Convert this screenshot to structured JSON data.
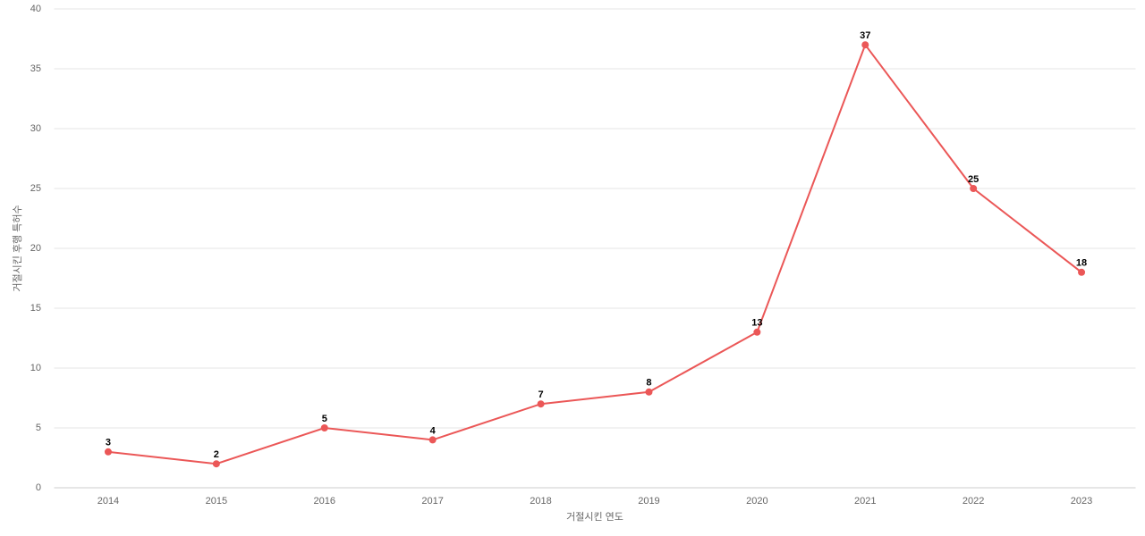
{
  "chart_data": {
    "type": "line",
    "x_label": "거절시킨 연도",
    "y_label": "거절시킨 후행 특허수",
    "categories": [
      "2014",
      "2015",
      "2016",
      "2017",
      "2018",
      "2019",
      "2020",
      "2021",
      "2022",
      "2023"
    ],
    "values": [
      3,
      2,
      5,
      4,
      7,
      8,
      13,
      37,
      25,
      18
    ],
    "color": "#eb5757",
    "ylim": [
      0,
      40
    ],
    "yticks": [
      0,
      5,
      10,
      15,
      20,
      25,
      30,
      35,
      40
    ],
    "grid": true
  }
}
